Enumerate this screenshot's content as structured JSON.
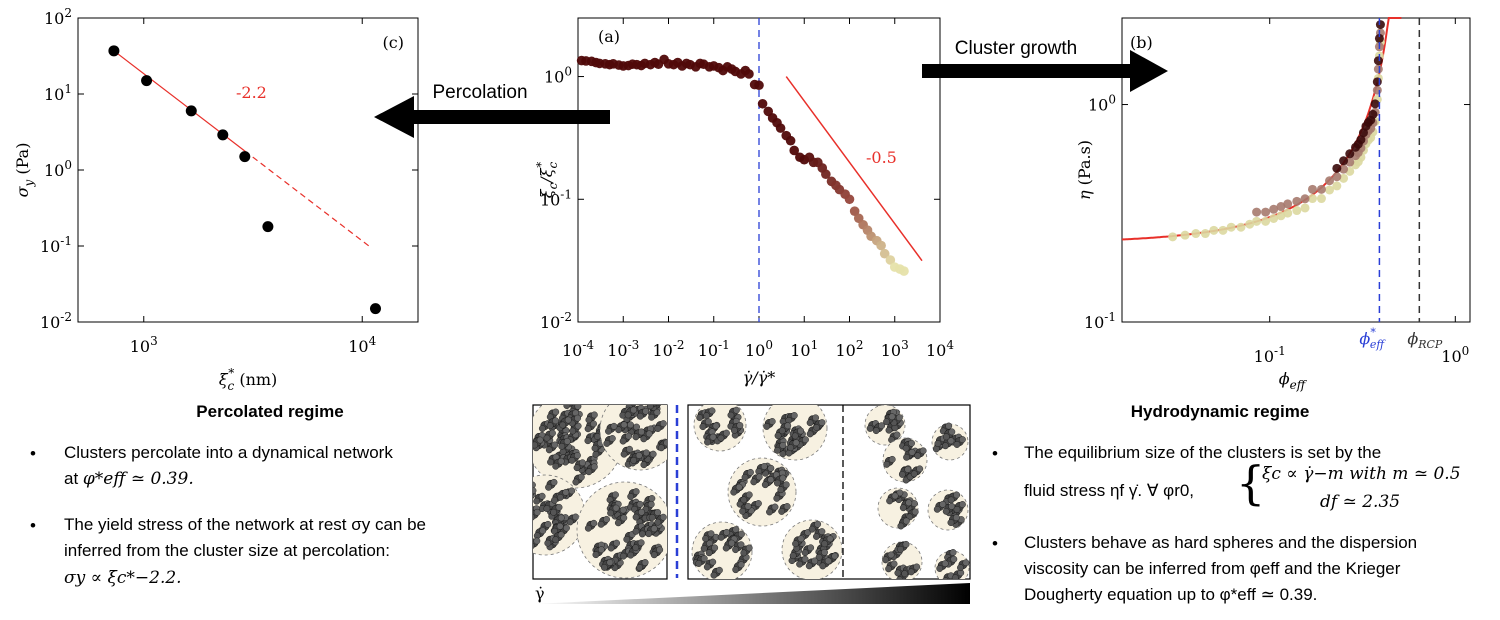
{
  "panel_c": {
    "label": "(c)",
    "xlabel": "ξ_c^* (nm)",
    "ylabel": "σ_y (Pa)",
    "slope_label": "-2.2",
    "x_ticks": [
      {
        "v": 1000,
        "t": "10^3"
      },
      {
        "v": 10000,
        "t": "10^4"
      }
    ],
    "y_ticks": [
      {
        "v": 0.01,
        "t": "10^-2"
      },
      {
        "v": 0.1,
        "t": "10^-1"
      },
      {
        "v": 1,
        "t": "10^0"
      },
      {
        "v": 10,
        "t": "10^1"
      },
      {
        "v": 100,
        "t": "10^2"
      }
    ]
  },
  "panel_a": {
    "label": "(a)",
    "xlabel": "γ̇/γ̇*",
    "ylabel": "ξ_c/ξ_c^*",
    "slope_label": "-0.5",
    "x_ticks": [
      {
        "v": -4,
        "t": "10^-4"
      },
      {
        "v": -3,
        "t": "10^-3"
      },
      {
        "v": -2,
        "t": "10^-2"
      },
      {
        "v": -1,
        "t": "10^-1"
      },
      {
        "v": 0,
        "t": "10^0"
      },
      {
        "v": 1,
        "t": "10^1"
      },
      {
        "v": 2,
        "t": "10^2"
      },
      {
        "v": 3,
        "t": "10^3"
      },
      {
        "v": 4,
        "t": "10^4"
      }
    ],
    "y_ticks": [
      {
        "v": -2,
        "t": "10^-2"
      },
      {
        "v": -1,
        "t": "10^-1"
      },
      {
        "v": 0,
        "t": "10^0"
      }
    ]
  },
  "panel_b": {
    "label": "(b)",
    "xlabel": "φ_eff",
    "ylabel": "η (Pa.s)",
    "phi_star_label": "φ*_eff",
    "phi_rcp_label": "φ_RCP",
    "x_ticks": [
      {
        "v": 0.1,
        "t": "10^-1"
      },
      {
        "v": 1,
        "t": "10^0"
      }
    ],
    "y_ticks": [
      {
        "v": 0.1,
        "t": "10^-1"
      },
      {
        "v": 1,
        "t": "10^0"
      }
    ]
  },
  "arrows": {
    "left": "Percolation",
    "right": "Cluster growth"
  },
  "shear_symbol": "γ̇",
  "left_text": {
    "heading": "Percolated regime",
    "bullet1_line1": "Clusters percolate into a dynamical network",
    "bullet1_line2_pre": "at ",
    "bullet1_line2_math": "φ*eff ≃ 0.39.",
    "bullet2_line1": "The yield stress of the network at rest σy can be",
    "bullet2_line2": "inferred from the cluster size at percolation:",
    "bullet2_line3": "σy ∝ ξc*−2.2."
  },
  "right_text": {
    "heading": "Hydrodynamic regime",
    "bullet1_line1": "The equilibrium size of the clusters is set by the",
    "bullet1_line2": "fluid stress ηf γ̇.  ∀ φr0,",
    "brace_line1": "ξc ∝ γ̇−m with m ≃ 0.5",
    "brace_line2": "df ≃ 2.35",
    "bullet2_line1": "Clusters behave as hard spheres and the dispersion",
    "bullet2_line2": "viscosity can be inferred from φeff and the Krieger",
    "bullet2_line3": "Dougherty equation up to φ*eff ≃ 0.39."
  },
  "chart_data": [
    {
      "panel": "c",
      "type": "scatter",
      "x_scale": "log",
      "y_scale": "log",
      "xlim": [
        500,
        18000
      ],
      "ylim": [
        0.01,
        100
      ],
      "x": [
        730,
        1030,
        1650,
        2300,
        2900,
        3700,
        11500
      ],
      "y": [
        37,
        15,
        6,
        2.9,
        1.5,
        0.18,
        0.015
      ],
      "fit": {
        "exponent": -2.2,
        "x_range": [
          730,
          11000
        ]
      }
    },
    {
      "panel": "a",
      "type": "scatter",
      "x_scale": "log",
      "y_scale": "log",
      "xlim": [
        0.0001,
        10000
      ],
      "ylim": [
        0.01,
        3
      ],
      "series": [
        {
          "x": [
            0.00012,
            0.00015,
            0.0002,
            0.00025,
            0.0003,
            0.0004,
            0.0005,
            0.0006,
            0.0008,
            0.001,
            0.0013,
            0.0016,
            0.002,
            0.0025,
            0.003,
            0.004,
            0.005,
            0.006,
            0.008,
            0.01,
            0.013,
            0.016,
            0.02,
            0.025,
            0.03,
            0.04,
            0.05,
            0.06,
            0.08,
            0.1,
            0.13,
            0.16,
            0.2,
            0.25,
            0.3,
            0.4,
            0.5,
            0.6,
            0.8,
            1.0,
            1.2,
            1.6,
            2.0,
            2.5,
            3.0,
            4.0,
            5.0,
            6.0,
            8.0,
            10,
            13,
            16,
            20,
            25,
            30,
            40,
            50,
            60,
            80,
            100,
            130,
            160,
            200,
            250,
            300,
            400,
            500,
            600,
            800,
            1000,
            1300,
            1600
          ],
          "y": [
            1.35,
            1.34,
            1.33,
            1.3,
            1.28,
            1.27,
            1.25,
            1.27,
            1.24,
            1.22,
            1.23,
            1.26,
            1.25,
            1.23,
            1.28,
            1.25,
            1.3,
            1.26,
            1.38,
            1.27,
            1.25,
            1.3,
            1.22,
            1.28,
            1.25,
            1.2,
            1.28,
            1.26,
            1.2,
            1.22,
            1.18,
            1.12,
            1.2,
            1.15,
            1.1,
            1.05,
            1.12,
            1.05,
            0.86,
            0.85,
            0.6,
            0.52,
            0.46,
            0.42,
            0.38,
            0.33,
            0.3,
            0.25,
            0.22,
            0.21,
            0.22,
            0.2,
            0.2,
            0.18,
            0.16,
            0.14,
            0.13,
            0.12,
            0.11,
            0.1,
            0.08,
            0.07,
            0.062,
            0.056,
            0.05,
            0.046,
            0.042,
            0.036,
            0.032,
            0.028,
            0.027,
            0.026
          ]
        }
      ],
      "fit": {
        "exponent": -0.5,
        "x_range": [
          4,
          4000
        ]
      },
      "vline_x": 1.0
    },
    {
      "panel": "b",
      "type": "scatter",
      "x_scale": "log",
      "y_scale": "log",
      "xlim": [
        0.016,
        1.2
      ],
      "ylim": [
        0.1,
        2.5
      ],
      "x": [
        0.03,
        0.035,
        0.04,
        0.045,
        0.05,
        0.056,
        0.062,
        0.07,
        0.078,
        0.085,
        0.095,
        0.105,
        0.115,
        0.125,
        0.14,
        0.155,
        0.17,
        0.19,
        0.21,
        0.23,
        0.25,
        0.27,
        0.29,
        0.3,
        0.31,
        0.32,
        0.33,
        0.34,
        0.35,
        0.36,
        0.37,
        0.38,
        0.385,
        0.39,
        0.395
      ],
      "y": [
        0.28,
        0.285,
        0.29,
        0.29,
        0.3,
        0.3,
        0.31,
        0.31,
        0.32,
        0.33,
        0.33,
        0.34,
        0.35,
        0.36,
        0.37,
        0.38,
        0.42,
        0.42,
        0.46,
        0.48,
        0.52,
        0.56,
        0.6,
        0.62,
        0.65,
        0.7,
        0.75,
        0.78,
        0.8,
        0.85,
        0.95,
        1.2,
        1.5,
        1.9,
        2.2
      ],
      "fit": {
        "model": "Krieger-Dougherty",
        "eta0": 0.23,
        "phi_max": 0.52
      },
      "vline_phi_star": 0.39,
      "vline_phi_rcp": 0.64
    }
  ]
}
